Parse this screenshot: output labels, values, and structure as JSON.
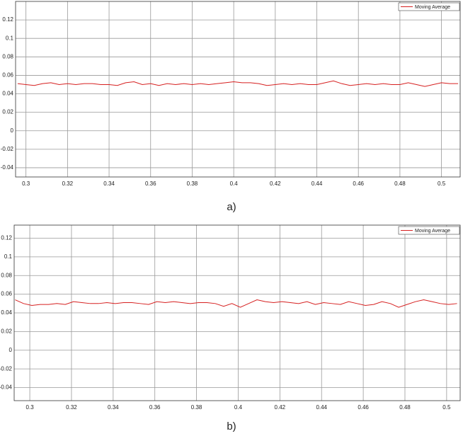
{
  "chart_data": [
    {
      "type": "line",
      "caption": "a)",
      "x": [
        0.296,
        0.3,
        0.304,
        0.308,
        0.312,
        0.316,
        0.32,
        0.324,
        0.328,
        0.332,
        0.336,
        0.34,
        0.344,
        0.348,
        0.352,
        0.356,
        0.36,
        0.364,
        0.368,
        0.372,
        0.376,
        0.38,
        0.384,
        0.388,
        0.392,
        0.396,
        0.4,
        0.404,
        0.408,
        0.412,
        0.416,
        0.42,
        0.424,
        0.428,
        0.432,
        0.436,
        0.44,
        0.444,
        0.448,
        0.452,
        0.456,
        0.46,
        0.464,
        0.468,
        0.472,
        0.476,
        0.48,
        0.484,
        0.488,
        0.492,
        0.496,
        0.5,
        0.504,
        0.508
      ],
      "series": [
        {
          "name": "Moving Average",
          "color": "#d62020",
          "values": [
            0.051,
            0.05,
            0.049,
            0.051,
            0.052,
            0.05,
            0.051,
            0.05,
            0.051,
            0.051,
            0.05,
            0.05,
            0.049,
            0.052,
            0.053,
            0.05,
            0.051,
            0.049,
            0.051,
            0.05,
            0.051,
            0.05,
            0.051,
            0.05,
            0.051,
            0.052,
            0.053,
            0.052,
            0.052,
            0.051,
            0.049,
            0.05,
            0.051,
            0.05,
            0.051,
            0.05,
            0.05,
            0.052,
            0.054,
            0.051,
            0.049,
            0.05,
            0.051,
            0.05,
            0.051,
            0.05,
            0.05,
            0.052,
            0.05,
            0.048,
            0.05,
            0.052,
            0.051,
            0.051
          ]
        }
      ],
      "xlim": [
        0.295,
        0.509
      ],
      "xticks": [
        0.3,
        0.32,
        0.34,
        0.36,
        0.38,
        0.4,
        0.42,
        0.44,
        0.46,
        0.48,
        0.5
      ],
      "ylim": [
        -0.05,
        0.14
      ],
      "yticks": [
        -0.04,
        -0.02,
        0,
        0.02,
        0.04,
        0.06,
        0.08,
        0.1,
        0.12
      ],
      "grid": true,
      "legend": "upper-right"
    },
    {
      "type": "line",
      "caption": "b)",
      "x": [
        0.293,
        0.297,
        0.301,
        0.305,
        0.309,
        0.313,
        0.317,
        0.321,
        0.325,
        0.329,
        0.333,
        0.337,
        0.341,
        0.345,
        0.349,
        0.353,
        0.357,
        0.361,
        0.365,
        0.369,
        0.373,
        0.377,
        0.381,
        0.385,
        0.389,
        0.393,
        0.397,
        0.401,
        0.405,
        0.409,
        0.413,
        0.417,
        0.421,
        0.425,
        0.429,
        0.433,
        0.437,
        0.441,
        0.445,
        0.449,
        0.453,
        0.457,
        0.461,
        0.465,
        0.469,
        0.473,
        0.477,
        0.481,
        0.485,
        0.489,
        0.493,
        0.497,
        0.501,
        0.505
      ],
      "series": [
        {
          "name": "Moving Average",
          "color": "#d62020",
          "values": [
            0.054,
            0.05,
            0.048,
            0.049,
            0.049,
            0.05,
            0.049,
            0.052,
            0.051,
            0.05,
            0.05,
            0.051,
            0.05,
            0.051,
            0.051,
            0.05,
            0.049,
            0.052,
            0.051,
            0.052,
            0.051,
            0.05,
            0.051,
            0.051,
            0.05,
            0.047,
            0.05,
            0.046,
            0.05,
            0.054,
            0.052,
            0.051,
            0.052,
            0.051,
            0.05,
            0.052,
            0.049,
            0.051,
            0.05,
            0.049,
            0.052,
            0.05,
            0.048,
            0.049,
            0.052,
            0.05,
            0.046,
            0.049,
            0.052,
            0.054,
            0.052,
            0.05,
            0.049,
            0.05
          ]
        }
      ],
      "xlim": [
        0.2925,
        0.5065
      ],
      "xticks": [
        0.3,
        0.32,
        0.34,
        0.36,
        0.38,
        0.4,
        0.42,
        0.44,
        0.46,
        0.48,
        0.5
      ],
      "ylim": [
        -0.054,
        0.134
      ],
      "yticks": [
        -0.04,
        -0.02,
        0,
        0.02,
        0.04,
        0.06,
        0.08,
        0.1,
        0.12
      ],
      "grid": true,
      "legend": "upper-right"
    }
  ]
}
